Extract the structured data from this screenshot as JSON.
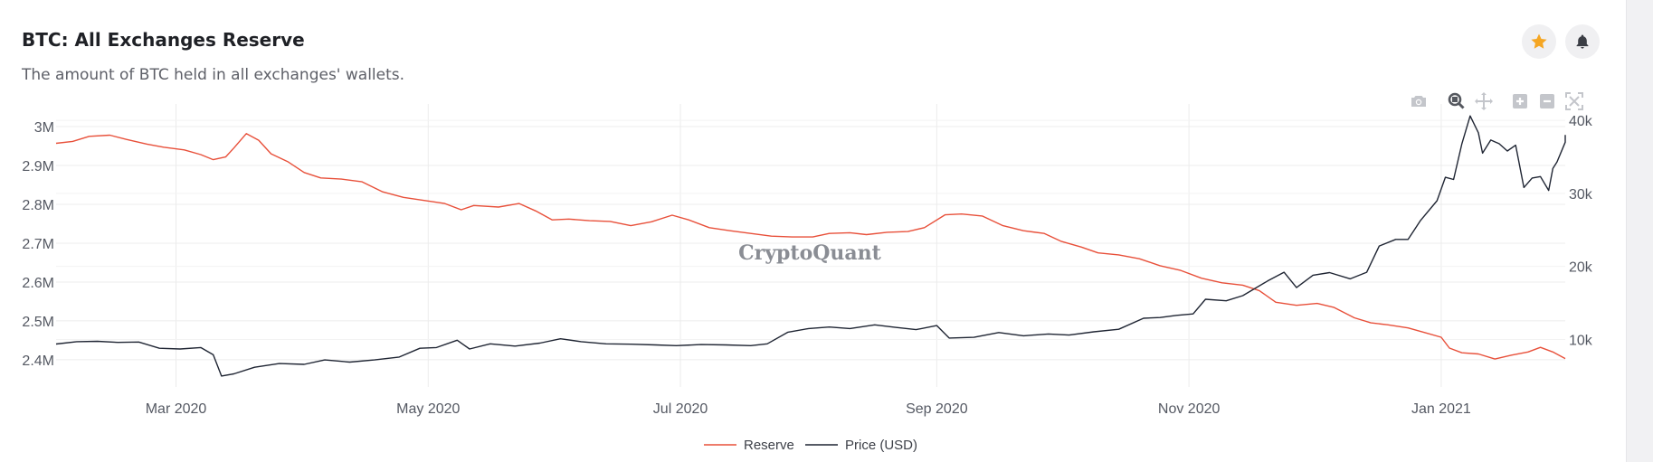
{
  "header": {
    "title": "BTC: All Exchanges Reserve",
    "subtitle": "The amount of BTC held in all exchanges' wallets."
  },
  "actions": {
    "favorite_icon": "star-icon",
    "alert_icon": "bell-icon"
  },
  "modebar": [
    "camera-icon",
    "zoom-icon",
    "pan-icon",
    "zoom-in-icon",
    "zoom-out-icon",
    "autoscale-icon"
  ],
  "watermark": "CryptoQuant",
  "colors": {
    "reserve": "#e8503a",
    "price": "#1f2533",
    "star": "#f5a623",
    "grid": "#ececec"
  },
  "chart_data": {
    "type": "line",
    "x_start": "2020-02-01",
    "x_end": "2021-01-31",
    "x_ticks": [
      {
        "date": "2020-03-01",
        "label": "Mar 2020"
      },
      {
        "date": "2020-05-01",
        "label": "May 2020"
      },
      {
        "date": "2020-07-01",
        "label": "Jul 2020"
      },
      {
        "date": "2020-09-01",
        "label": "Sep 2020"
      },
      {
        "date": "2020-11-01",
        "label": "Nov 2020"
      },
      {
        "date": "2021-01-01",
        "label": "Jan 2021"
      }
    ],
    "y_left": {
      "range": [
        2330000,
        3035000
      ],
      "ticks": [
        {
          "value": 2400000,
          "label": "2.4M"
        },
        {
          "value": 2500000,
          "label": "2.5M"
        },
        {
          "value": 2600000,
          "label": "2.6M"
        },
        {
          "value": 2700000,
          "label": "2.7M"
        },
        {
          "value": 2800000,
          "label": "2.8M"
        },
        {
          "value": 2900000,
          "label": "2.9M"
        },
        {
          "value": 3000000,
          "label": "3M"
        }
      ]
    },
    "y_right": {
      "range": [
        3500,
        41000
      ],
      "ticks": [
        {
          "value": 10000,
          "label": "10k"
        },
        {
          "value": 20000,
          "label": "20k"
        },
        {
          "value": 30000,
          "label": "30k"
        },
        {
          "value": 40000,
          "label": "40k"
        }
      ]
    },
    "series": [
      {
        "name": "Reserve",
        "axis": "left",
        "points": [
          [
            "2020-02-01",
            2957000
          ],
          [
            "2020-02-05",
            2962000
          ],
          [
            "2020-02-09",
            2975000
          ],
          [
            "2020-02-14",
            2978000
          ],
          [
            "2020-02-18",
            2967000
          ],
          [
            "2020-02-23",
            2955000
          ],
          [
            "2020-02-27",
            2947000
          ],
          [
            "2020-03-03",
            2940000
          ],
          [
            "2020-03-07",
            2928000
          ],
          [
            "2020-03-10",
            2915000
          ],
          [
            "2020-03-13",
            2922000
          ],
          [
            "2020-03-15",
            2945000
          ],
          [
            "2020-03-18",
            2982000
          ],
          [
            "2020-03-21",
            2965000
          ],
          [
            "2020-03-24",
            2930000
          ],
          [
            "2020-03-28",
            2910000
          ],
          [
            "2020-04-01",
            2882000
          ],
          [
            "2020-04-05",
            2868000
          ],
          [
            "2020-04-10",
            2865000
          ],
          [
            "2020-04-15",
            2858000
          ],
          [
            "2020-04-20",
            2832000
          ],
          [
            "2020-04-25",
            2818000
          ],
          [
            "2020-04-30",
            2810000
          ],
          [
            "2020-05-05",
            2802000
          ],
          [
            "2020-05-09",
            2786000
          ],
          [
            "2020-05-12",
            2797000
          ],
          [
            "2020-05-18",
            2793000
          ],
          [
            "2020-05-23",
            2802000
          ],
          [
            "2020-05-27",
            2783000
          ],
          [
            "2020-05-31",
            2760000
          ],
          [
            "2020-06-04",
            2762000
          ],
          [
            "2020-06-09",
            2758000
          ],
          [
            "2020-06-14",
            2756000
          ],
          [
            "2020-06-19",
            2745000
          ],
          [
            "2020-06-24",
            2755000
          ],
          [
            "2020-06-29",
            2772000
          ],
          [
            "2020-07-03",
            2760000
          ],
          [
            "2020-07-08",
            2740000
          ],
          [
            "2020-07-13",
            2732000
          ],
          [
            "2020-07-18",
            2725000
          ],
          [
            "2020-07-23",
            2718000
          ],
          [
            "2020-07-28",
            2716000
          ],
          [
            "2020-08-02",
            2716000
          ],
          [
            "2020-08-06",
            2725000
          ],
          [
            "2020-08-11",
            2727000
          ],
          [
            "2020-08-15",
            2722000
          ],
          [
            "2020-08-20",
            2728000
          ],
          [
            "2020-08-25",
            2730000
          ],
          [
            "2020-08-29",
            2740000
          ],
          [
            "2020-09-03",
            2773000
          ],
          [
            "2020-09-07",
            2775000
          ],
          [
            "2020-09-12",
            2770000
          ],
          [
            "2020-09-17",
            2745000
          ],
          [
            "2020-09-22",
            2732000
          ],
          [
            "2020-09-27",
            2725000
          ],
          [
            "2020-10-01",
            2705000
          ],
          [
            "2020-10-06",
            2690000
          ],
          [
            "2020-10-10",
            2675000
          ],
          [
            "2020-10-15",
            2670000
          ],
          [
            "2020-10-20",
            2660000
          ],
          [
            "2020-10-25",
            2642000
          ],
          [
            "2020-10-30",
            2630000
          ],
          [
            "2020-11-04",
            2610000
          ],
          [
            "2020-11-09",
            2598000
          ],
          [
            "2020-11-14",
            2592000
          ],
          [
            "2020-11-18",
            2578000
          ],
          [
            "2020-11-22",
            2548000
          ],
          [
            "2020-11-27",
            2540000
          ],
          [
            "2020-12-02",
            2545000
          ],
          [
            "2020-12-06",
            2535000
          ],
          [
            "2020-12-11",
            2508000
          ],
          [
            "2020-12-15",
            2495000
          ],
          [
            "2020-12-19",
            2490000
          ],
          [
            "2020-12-24",
            2482000
          ],
          [
            "2020-12-28",
            2470000
          ],
          [
            "2021-01-01",
            2458000
          ],
          [
            "2021-01-03",
            2430000
          ],
          [
            "2021-01-06",
            2418000
          ],
          [
            "2021-01-10",
            2415000
          ],
          [
            "2021-01-14",
            2402000
          ],
          [
            "2021-01-18",
            2412000
          ],
          [
            "2021-01-22",
            2420000
          ],
          [
            "2021-01-25",
            2432000
          ],
          [
            "2021-01-28",
            2420000
          ],
          [
            "2021-01-31",
            2403000
          ]
        ]
      },
      {
        "name": "Price (USD)",
        "axis": "right",
        "points": [
          [
            "2020-02-01",
            9380
          ],
          [
            "2020-02-06",
            9700
          ],
          [
            "2020-02-11",
            9750
          ],
          [
            "2020-02-16",
            9600
          ],
          [
            "2020-02-21",
            9650
          ],
          [
            "2020-02-26",
            8800
          ],
          [
            "2020-03-02",
            8700
          ],
          [
            "2020-03-07",
            8900
          ],
          [
            "2020-03-10",
            7900
          ],
          [
            "2020-03-12",
            5000
          ],
          [
            "2020-03-15",
            5300
          ],
          [
            "2020-03-20",
            6200
          ],
          [
            "2020-03-26",
            6700
          ],
          [
            "2020-04-01",
            6600
          ],
          [
            "2020-04-06",
            7200
          ],
          [
            "2020-04-12",
            6900
          ],
          [
            "2020-04-18",
            7200
          ],
          [
            "2020-04-24",
            7600
          ],
          [
            "2020-04-29",
            8800
          ],
          [
            "2020-05-03",
            8900
          ],
          [
            "2020-05-08",
            9900
          ],
          [
            "2020-05-11",
            8700
          ],
          [
            "2020-05-16",
            9400
          ],
          [
            "2020-05-22",
            9100
          ],
          [
            "2020-05-28",
            9500
          ],
          [
            "2020-06-02",
            10100
          ],
          [
            "2020-06-07",
            9700
          ],
          [
            "2020-06-13",
            9400
          ],
          [
            "2020-06-19",
            9350
          ],
          [
            "2020-06-25",
            9250
          ],
          [
            "2020-06-30",
            9150
          ],
          [
            "2020-07-06",
            9300
          ],
          [
            "2020-07-12",
            9250
          ],
          [
            "2020-07-18",
            9150
          ],
          [
            "2020-07-22",
            9400
          ],
          [
            "2020-07-27",
            11000
          ],
          [
            "2020-08-01",
            11500
          ],
          [
            "2020-08-06",
            11700
          ],
          [
            "2020-08-11",
            11500
          ],
          [
            "2020-08-17",
            12000
          ],
          [
            "2020-08-22",
            11650
          ],
          [
            "2020-08-27",
            11350
          ],
          [
            "2020-09-01",
            11900
          ],
          [
            "2020-09-04",
            10200
          ],
          [
            "2020-09-10",
            10300
          ],
          [
            "2020-09-16",
            10950
          ],
          [
            "2020-09-22",
            10500
          ],
          [
            "2020-09-28",
            10750
          ],
          [
            "2020-10-03",
            10600
          ],
          [
            "2020-10-09",
            11050
          ],
          [
            "2020-10-15",
            11400
          ],
          [
            "2020-10-21",
            12900
          ],
          [
            "2020-10-25",
            13000
          ],
          [
            "2020-10-29",
            13300
          ],
          [
            "2020-11-02",
            13500
          ],
          [
            "2020-11-05",
            15500
          ],
          [
            "2020-11-10",
            15300
          ],
          [
            "2020-11-14",
            16000
          ],
          [
            "2020-11-20",
            18000
          ],
          [
            "2020-11-24",
            19200
          ],
          [
            "2020-11-27",
            17100
          ],
          [
            "2020-12-01",
            18800
          ],
          [
            "2020-12-05",
            19150
          ],
          [
            "2020-12-10",
            18300
          ],
          [
            "2020-12-14",
            19200
          ],
          [
            "2020-12-17",
            22800
          ],
          [
            "2020-12-21",
            23700
          ],
          [
            "2020-12-24",
            23700
          ],
          [
            "2020-12-27",
            26300
          ],
          [
            "2020-12-31",
            29000
          ],
          [
            "2021-01-02",
            32200
          ],
          [
            "2021-01-04",
            31900
          ],
          [
            "2021-01-06",
            36800
          ],
          [
            "2021-01-08",
            40600
          ],
          [
            "2021-01-10",
            38300
          ],
          [
            "2021-01-11",
            35500
          ],
          [
            "2021-01-13",
            37300
          ],
          [
            "2021-01-15",
            36800
          ],
          [
            "2021-01-17",
            35800
          ],
          [
            "2021-01-19",
            36600
          ],
          [
            "2021-01-21",
            30800
          ],
          [
            "2021-01-23",
            32100
          ],
          [
            "2021-01-25",
            32300
          ],
          [
            "2021-01-27",
            30400
          ],
          [
            "2021-01-28",
            33400
          ],
          [
            "2021-01-29",
            34300
          ],
          [
            "2021-01-31",
            37000
          ],
          [
            "2021-02-02",
            38000
          ]
        ]
      }
    ],
    "legend": {
      "position": "bottom-center",
      "entries": [
        "Reserve",
        "Price (USD)"
      ]
    },
    "grid": true
  }
}
